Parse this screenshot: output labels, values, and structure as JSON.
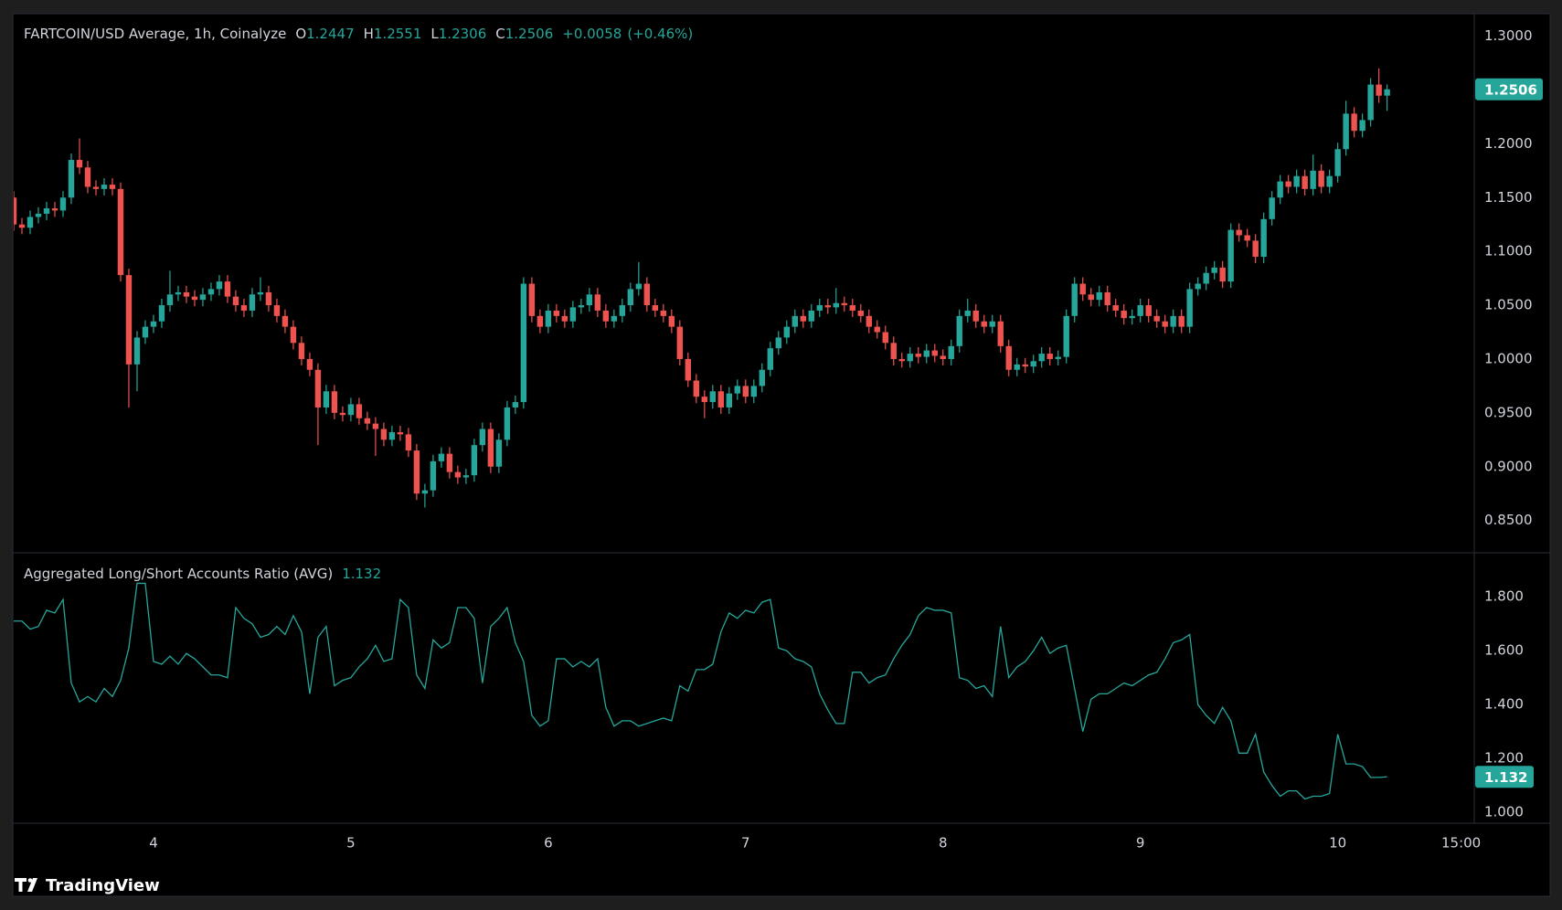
{
  "chart_data": [
    {
      "type": "candlestick",
      "title": "FARTCOIN/USD Average, 1h, Coinalyze",
      "ohlc_labels": [
        "O",
        "H",
        "L",
        "C"
      ],
      "change": "+0.0058",
      "change_pct": "(+0.46%)",
      "up_color": "#26a69a",
      "down_color": "#ef5350",
      "open": [
        1.15,
        1.125,
        1.122,
        1.132,
        1.135,
        1.14,
        1.138,
        1.15,
        1.185,
        1.178,
        1.16,
        1.158,
        1.162,
        1.158,
        1.078,
        0.995,
        1.02,
        1.03,
        1.035,
        1.05,
        1.06,
        1.062,
        1.058,
        1.055,
        1.06,
        1.065,
        1.072,
        1.058,
        1.05,
        1.045,
        1.06,
        1.062,
        1.05,
        1.04,
        1.03,
        1.015,
        1.0,
        0.99,
        0.955,
        0.97,
        0.95,
        0.948,
        0.958,
        0.945,
        0.94,
        0.935,
        0.925,
        0.932,
        0.93,
        0.915,
        0.875,
        0.878,
        0.905,
        0.912,
        0.895,
        0.89,
        0.892,
        0.92,
        0.935,
        0.9,
        0.925,
        0.955,
        0.96,
        1.07,
        1.04,
        1.03,
        1.045,
        1.04,
        1.035,
        1.048,
        1.05,
        1.06,
        1.045,
        1.035,
        1.04,
        1.05,
        1.065,
        1.07,
        1.05,
        1.045,
        1.04,
        1.03,
        1.0,
        0.98,
        0.965,
        0.96,
        0.97,
        0.955,
        0.968,
        0.975,
        0.965,
        0.975,
        0.99,
        1.01,
        1.02,
        1.03,
        1.04,
        1.035,
        1.045,
        1.05,
        1.048,
        1.052,
        1.05,
        1.045,
        1.04,
        1.03,
        1.025,
        1.015,
        1.0,
        0.998,
        1.005,
        1.002,
        1.008,
        1.003,
        1.0,
        1.012,
        1.04,
        1.045,
        1.035,
        1.03,
        1.035,
        1.012,
        0.99,
        0.995,
        0.993,
        0.998,
        1.005,
        1.0,
        1.002,
        1.04,
        1.07,
        1.06,
        1.055,
        1.062,
        1.05,
        1.045,
        1.038,
        1.04,
        1.05,
        1.04,
        1.035,
        1.03,
        1.04,
        1.03,
        1.065,
        1.07,
        1.08,
        1.085,
        1.072,
        1.12,
        1.115,
        1.11,
        1.095,
        1.13,
        1.15,
        1.165,
        1.16,
        1.17,
        1.158,
        1.175,
        1.16,
        1.17,
        1.195,
        1.228,
        1.212,
        1.222,
        1.255,
        1.2447
      ],
      "high": [
        1.156,
        1.131,
        1.138,
        1.141,
        1.146,
        1.146,
        1.156,
        1.191,
        1.205,
        1.184,
        1.166,
        1.168,
        1.168,
        1.164,
        1.084,
        1.026,
        1.036,
        1.041,
        1.056,
        1.082,
        1.068,
        1.068,
        1.064,
        1.066,
        1.071,
        1.078,
        1.078,
        1.064,
        1.056,
        1.066,
        1.076,
        1.068,
        1.056,
        1.046,
        1.036,
        1.021,
        1.006,
        0.996,
        0.976,
        0.976,
        0.956,
        0.964,
        0.964,
        0.951,
        0.946,
        0.941,
        0.938,
        0.938,
        0.936,
        0.921,
        0.884,
        0.911,
        0.918,
        0.918,
        0.901,
        0.898,
        0.926,
        0.941,
        0.941,
        0.931,
        0.961,
        0.966,
        1.076,
        1.076,
        1.046,
        1.051,
        1.051,
        1.046,
        1.054,
        1.056,
        1.066,
        1.066,
        1.051,
        1.046,
        1.056,
        1.071,
        1.09,
        1.076,
        1.056,
        1.051,
        1.046,
        1.036,
        1.006,
        0.986,
        0.971,
        0.976,
        0.976,
        0.974,
        0.981,
        0.981,
        0.981,
        0.996,
        1.016,
        1.026,
        1.036,
        1.046,
        1.046,
        1.051,
        1.056,
        1.056,
        1.066,
        1.058,
        1.056,
        1.051,
        1.046,
        1.036,
        1.031,
        1.021,
        1.006,
        1.011,
        1.011,
        1.014,
        1.014,
        1.009,
        1.018,
        1.046,
        1.056,
        1.051,
        1.041,
        1.041,
        1.041,
        1.018,
        1.001,
        1.001,
        1.004,
        1.011,
        1.011,
        1.008,
        1.046,
        1.076,
        1.076,
        1.066,
        1.068,
        1.068,
        1.056,
        1.051,
        1.046,
        1.056,
        1.056,
        1.046,
        1.041,
        1.046,
        1.046,
        1.071,
        1.076,
        1.086,
        1.091,
        1.091,
        1.126,
        1.126,
        1.121,
        1.116,
        1.136,
        1.156,
        1.171,
        1.171,
        1.176,
        1.176,
        1.19,
        1.181,
        1.176,
        1.201,
        1.24,
        1.234,
        1.228,
        1.261,
        1.27,
        1.2551
      ],
      "low": [
        1.119,
        1.116,
        1.116,
        1.126,
        1.129,
        1.132,
        1.132,
        1.144,
        1.172,
        1.154,
        1.152,
        1.152,
        1.152,
        1.072,
        0.955,
        0.97,
        1.014,
        1.024,
        1.029,
        1.044,
        1.054,
        1.052,
        1.049,
        1.049,
        1.054,
        1.059,
        1.052,
        1.044,
        1.039,
        1.039,
        1.054,
        1.044,
        1.034,
        1.024,
        1.009,
        0.994,
        0.984,
        0.92,
        0.949,
        0.944,
        0.942,
        0.942,
        0.939,
        0.934,
        0.91,
        0.919,
        0.919,
        0.924,
        0.909,
        0.869,
        0.862,
        0.872,
        0.899,
        0.889,
        0.884,
        0.884,
        0.886,
        0.914,
        0.894,
        0.894,
        0.919,
        0.949,
        0.954,
        1.034,
        1.024,
        1.024,
        1.034,
        1.029,
        1.029,
        1.042,
        1.044,
        1.039,
        1.029,
        1.029,
        1.034,
        1.044,
        1.059,
        1.044,
        1.039,
        1.034,
        1.024,
        0.994,
        0.974,
        0.959,
        0.945,
        0.954,
        0.949,
        0.949,
        0.962,
        0.959,
        0.959,
        0.969,
        0.984,
        1.004,
        1.014,
        1.024,
        1.029,
        1.029,
        1.039,
        1.042,
        1.042,
        1.044,
        1.039,
        1.034,
        1.024,
        1.019,
        1.009,
        0.994,
        0.992,
        0.992,
        0.996,
        0.996,
        0.997,
        0.994,
        0.994,
        1.006,
        1.034,
        1.029,
        1.024,
        1.024,
        1.006,
        0.984,
        0.984,
        0.987,
        0.987,
        0.992,
        0.994,
        0.994,
        0.996,
        1.034,
        1.054,
        1.049,
        1.049,
        1.044,
        1.039,
        1.032,
        1.032,
        1.034,
        1.034,
        1.029,
        1.024,
        1.024,
        1.024,
        1.024,
        1.059,
        1.064,
        1.074,
        1.066,
        1.066,
        1.109,
        1.104,
        1.089,
        1.089,
        1.124,
        1.144,
        1.154,
        1.154,
        1.152,
        1.152,
        1.154,
        1.154,
        1.164,
        1.189,
        1.206,
        1.206,
        1.216,
        1.238,
        1.2306
      ],
      "close": [
        1.125,
        1.122,
        1.132,
        1.135,
        1.14,
        1.138,
        1.15,
        1.185,
        1.178,
        1.16,
        1.158,
        1.162,
        1.158,
        1.078,
        0.995,
        1.02,
        1.03,
        1.035,
        1.05,
        1.06,
        1.062,
        1.058,
        1.055,
        1.06,
        1.065,
        1.072,
        1.058,
        1.05,
        1.045,
        1.06,
        1.062,
        1.05,
        1.04,
        1.03,
        1.015,
        1.0,
        0.99,
        0.955,
        0.97,
        0.95,
        0.948,
        0.958,
        0.945,
        0.94,
        0.935,
        0.925,
        0.932,
        0.93,
        0.915,
        0.875,
        0.878,
        0.905,
        0.912,
        0.895,
        0.89,
        0.892,
        0.92,
        0.935,
        0.9,
        0.925,
        0.955,
        0.96,
        1.07,
        1.04,
        1.03,
        1.045,
        1.04,
        1.035,
        1.048,
        1.05,
        1.06,
        1.045,
        1.035,
        1.04,
        1.05,
        1.065,
        1.07,
        1.05,
        1.045,
        1.04,
        1.03,
        1.0,
        0.98,
        0.965,
        0.96,
        0.97,
        0.955,
        0.968,
        0.975,
        0.965,
        0.975,
        0.99,
        1.01,
        1.02,
        1.03,
        1.04,
        1.035,
        1.045,
        1.05,
        1.048,
        1.052,
        1.05,
        1.045,
        1.04,
        1.03,
        1.025,
        1.015,
        1.0,
        0.998,
        1.005,
        1.002,
        1.008,
        1.003,
        1.0,
        1.012,
        1.04,
        1.045,
        1.035,
        1.03,
        1.035,
        1.012,
        0.99,
        0.995,
        0.993,
        0.998,
        1.005,
        1.0,
        1.002,
        1.04,
        1.07,
        1.06,
        1.055,
        1.062,
        1.05,
        1.045,
        1.038,
        1.04,
        1.05,
        1.04,
        1.035,
        1.03,
        1.04,
        1.03,
        1.065,
        1.07,
        1.08,
        1.085,
        1.072,
        1.12,
        1.115,
        1.11,
        1.095,
        1.13,
        1.15,
        1.165,
        1.16,
        1.17,
        1.158,
        1.175,
        1.16,
        1.17,
        1.195,
        1.228,
        1.212,
        1.222,
        1.255,
        1.2447,
        1.2506
      ],
      "xlim": [
        0,
        177.6
      ],
      "ylim": [
        0.82,
        1.32
      ],
      "yticks": [
        {
          "value": 0.85,
          "label": "0.8500"
        },
        {
          "value": 0.9,
          "label": "0.9000"
        },
        {
          "value": 0.95,
          "label": "0.9500"
        },
        {
          "value": 1.0,
          "label": "1.0000"
        },
        {
          "value": 1.05,
          "label": "1.0500"
        },
        {
          "value": 1.1,
          "label": "1.1000"
        },
        {
          "value": 1.15,
          "label": "1.1500"
        },
        {
          "value": 1.2,
          "label": "1.2000"
        },
        {
          "value": 1.25,
          "label": "1.2500"
        },
        {
          "value": 1.3,
          "label": "1.3000"
        }
      ],
      "grid": false
    },
    {
      "type": "line",
      "title": "Aggregated Long/Short Accounts Ratio (AVG)",
      "color": "#26a69a",
      "values": [
        1.71,
        1.71,
        1.68,
        1.69,
        1.75,
        1.74,
        1.79,
        1.48,
        1.41,
        1.43,
        1.41,
        1.46,
        1.43,
        1.49,
        1.61,
        1.85,
        1.85,
        1.56,
        1.55,
        1.58,
        1.55,
        1.59,
        1.57,
        1.54,
        1.51,
        1.51,
        1.5,
        1.76,
        1.72,
        1.7,
        1.65,
        1.66,
        1.69,
        1.66,
        1.73,
        1.67,
        1.44,
        1.65,
        1.69,
        1.47,
        1.49,
        1.5,
        1.54,
        1.57,
        1.62,
        1.56,
        1.57,
        1.79,
        1.76,
        1.51,
        1.46,
        1.64,
        1.61,
        1.63,
        1.76,
        1.76,
        1.72,
        1.48,
        1.69,
        1.72,
        1.76,
        1.63,
        1.56,
        1.36,
        1.32,
        1.34,
        1.57,
        1.57,
        1.54,
        1.56,
        1.54,
        1.57,
        1.39,
        1.32,
        1.34,
        1.34,
        1.32,
        1.33,
        1.34,
        1.35,
        1.34,
        1.47,
        1.45,
        1.53,
        1.53,
        1.55,
        1.67,
        1.74,
        1.72,
        1.75,
        1.74,
        1.78,
        1.79,
        1.61,
        1.6,
        1.57,
        1.56,
        1.54,
        1.44,
        1.38,
        1.33,
        1.33,
        1.52,
        1.52,
        1.48,
        1.5,
        1.51,
        1.57,
        1.62,
        1.66,
        1.73,
        1.76,
        1.75,
        1.75,
        1.74,
        1.5,
        1.49,
        1.46,
        1.47,
        1.43,
        1.69,
        1.5,
        1.54,
        1.56,
        1.6,
        1.65,
        1.59,
        1.61,
        1.62,
        1.46,
        1.3,
        1.42,
        1.44,
        1.44,
        1.46,
        1.48,
        1.47,
        1.49,
        1.51,
        1.52,
        1.57,
        1.63,
        1.64,
        1.66,
        1.4,
        1.36,
        1.33,
        1.39,
        1.34,
        1.22,
        1.22,
        1.29,
        1.15,
        1.1,
        1.06,
        1.08,
        1.08,
        1.05,
        1.06,
        1.06,
        1.07,
        1.29,
        1.18,
        1.18,
        1.17,
        1.13,
        1.13,
        1.132
      ],
      "xlim": [
        0,
        177.6
      ],
      "xticks": [
        {
          "value": 17,
          "label": "4"
        },
        {
          "value": 41,
          "label": "5"
        },
        {
          "value": 65,
          "label": "6"
        },
        {
          "value": 89,
          "label": "7"
        },
        {
          "value": 113,
          "label": "8"
        },
        {
          "value": 137,
          "label": "9"
        },
        {
          "value": 161,
          "label": "10"
        },
        {
          "value": 176,
          "label": "15:00"
        }
      ],
      "ylim": [
        0.96,
        1.96
      ],
      "yticks": [
        {
          "value": 1.0,
          "label": "1.000"
        },
        {
          "value": 1.2,
          "label": "1.200"
        },
        {
          "value": 1.4,
          "label": "1.400"
        },
        {
          "value": 1.6,
          "label": "1.600"
        },
        {
          "value": 1.8,
          "label": "1.800"
        }
      ],
      "grid": false
    }
  ],
  "brand": "TradingView"
}
